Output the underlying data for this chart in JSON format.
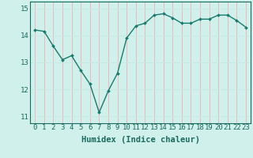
{
  "x": [
    0,
    1,
    2,
    3,
    4,
    5,
    6,
    7,
    8,
    9,
    10,
    11,
    12,
    13,
    14,
    15,
    16,
    17,
    18,
    19,
    20,
    21,
    22,
    23
  ],
  "y": [
    14.2,
    14.15,
    13.6,
    13.1,
    13.25,
    12.7,
    12.2,
    11.15,
    11.95,
    12.6,
    13.9,
    14.35,
    14.45,
    14.75,
    14.8,
    14.65,
    14.45,
    14.45,
    14.6,
    14.6,
    14.75,
    14.75,
    14.55,
    14.3
  ],
  "line_color": "#1a7a6e",
  "marker": "D",
  "marker_size": 2.0,
  "bg_color": "#cff0eb",
  "grid_color_v": "#f0b8b8",
  "grid_color_h": "#c8e8e4",
  "xlabel": "Humidex (Indice chaleur)",
  "xlim": [
    -0.5,
    23.5
  ],
  "ylim": [
    10.75,
    15.25
  ],
  "yticks": [
    11,
    12,
    13,
    14,
    15
  ],
  "xticks": [
    0,
    1,
    2,
    3,
    4,
    5,
    6,
    7,
    8,
    9,
    10,
    11,
    12,
    13,
    14,
    15,
    16,
    17,
    18,
    19,
    20,
    21,
    22,
    23
  ],
  "xtick_labels": [
    "0",
    "1",
    "2",
    "3",
    "4",
    "5",
    "6",
    "7",
    "8",
    "9",
    "10",
    "11",
    "12",
    "13",
    "14",
    "15",
    "16",
    "17",
    "18",
    "19",
    "20",
    "21",
    "22",
    "23"
  ],
  "xlabel_fontsize": 7.5,
  "tick_fontsize": 6.5,
  "line_width": 1.0
}
